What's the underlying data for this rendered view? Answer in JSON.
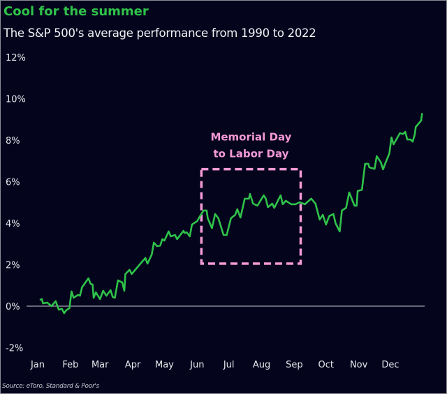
{
  "chart_data": {
    "type": "line",
    "title": "Cool for the summer",
    "subtitle": "The S&P 500's average performance from 1990 to 2022",
    "source": "Source: eToro, Standard & Poor's",
    "xlabel": "",
    "ylabel": "",
    "x_unit": "day of year",
    "ylim": [
      -2,
      12
    ],
    "y_ticks": [
      12,
      10,
      8,
      6,
      4,
      2,
      0,
      -2
    ],
    "y_tick_labels": [
      "12%",
      "10%",
      "8%",
      "6%",
      "4%",
      "2%",
      "0%",
      "-2%"
    ],
    "x_tick_labels": [
      "Jan",
      "Feb",
      "Mar",
      "Apr",
      "May",
      "Jun",
      "Jul",
      "Aug",
      "Sep",
      "Oct",
      "Nov",
      "Dec"
    ],
    "x_tick_days": [
      1,
      32,
      60,
      91,
      121,
      152,
      182,
      213,
      244,
      274,
      305,
      335
    ],
    "grid": false,
    "zero_line": true,
    "colors": {
      "line": "#2fc24a",
      "title": "#2fc24a",
      "annotation": "#f49ad6",
      "background": "#04041c",
      "zero_line": "#c8c8d2"
    },
    "series": [
      {
        "points": [
          [
            3,
            0.3
          ],
          [
            5,
            0.34
          ],
          [
            6,
            0.13
          ],
          [
            10,
            0.17
          ],
          [
            14,
            0.0
          ],
          [
            18,
            0.24
          ],
          [
            21,
            -0.17
          ],
          [
            24,
            -0.13
          ],
          [
            26,
            -0.34
          ],
          [
            28,
            -0.2
          ],
          [
            31,
            -0.1
          ],
          [
            33,
            0.71
          ],
          [
            35,
            0.4
          ],
          [
            39,
            0.54
          ],
          [
            41,
            0.5
          ],
          [
            43,
            0.91
          ],
          [
            49,
            1.34
          ],
          [
            51,
            1.08
          ],
          [
            53,
            1.04
          ],
          [
            54,
            0.4
          ],
          [
            56,
            0.67
          ],
          [
            60,
            0.34
          ],
          [
            63,
            0.74
          ],
          [
            66,
            0.5
          ],
          [
            70,
            0.77
          ],
          [
            72,
            0.44
          ],
          [
            74,
            0.4
          ],
          [
            77,
            1.24
          ],
          [
            81,
            1.14
          ],
          [
            83,
            0.74
          ],
          [
            84,
            1.55
          ],
          [
            88,
            1.75
          ],
          [
            90,
            1.55
          ],
          [
            100,
            2.15
          ],
          [
            103,
            2.32
          ],
          [
            105,
            2.05
          ],
          [
            109,
            2.49
          ],
          [
            111,
            3.06
          ],
          [
            114,
            2.89
          ],
          [
            117,
            2.92
          ],
          [
            119,
            3.23
          ],
          [
            121,
            3.16
          ],
          [
            125,
            3.6
          ],
          [
            127,
            3.36
          ],
          [
            131,
            3.43
          ],
          [
            133,
            3.23
          ],
          [
            139,
            3.63
          ],
          [
            140,
            3.53
          ],
          [
            142,
            3.56
          ],
          [
            144,
            3.43
          ],
          [
            145,
            3.36
          ],
          [
            147,
            3.93
          ],
          [
            152,
            4.1
          ],
          [
            155,
            4.36
          ],
          [
            158,
            4.61
          ],
          [
            161,
            4.61
          ],
          [
            162,
            4.24
          ],
          [
            166,
            3.76
          ],
          [
            169,
            4.44
          ],
          [
            172,
            4.24
          ],
          [
            177,
            3.43
          ],
          [
            180,
            3.43
          ],
          [
            184,
            4.24
          ],
          [
            188,
            4.4
          ],
          [
            190,
            4.67
          ],
          [
            193,
            4.27
          ],
          [
            197,
            5.18
          ],
          [
            201,
            5.18
          ],
          [
            202,
            5.41
          ],
          [
            205,
            4.94
          ],
          [
            209,
            4.84
          ],
          [
            215,
            5.34
          ],
          [
            217,
            5.18
          ],
          [
            219,
            4.77
          ],
          [
            223,
            4.94
          ],
          [
            225,
            4.74
          ],
          [
            231,
            5.34
          ],
          [
            233,
            4.91
          ],
          [
            236,
            5.08
          ],
          [
            241,
            4.91
          ],
          [
            245,
            4.91
          ],
          [
            249,
            5.01
          ],
          [
            254,
            4.91
          ],
          [
            260,
            5.18
          ],
          [
            264,
            4.94
          ],
          [
            268,
            4.17
          ],
          [
            271,
            4.4
          ],
          [
            274,
            3.93
          ],
          [
            277,
            4.34
          ],
          [
            281,
            4.44
          ],
          [
            283,
            4.0
          ],
          [
            287,
            3.6
          ],
          [
            289,
            4.61
          ],
          [
            293,
            4.74
          ],
          [
            296,
            5.48
          ],
          [
            301,
            4.84
          ],
          [
            303,
            4.84
          ],
          [
            304,
            5.55
          ],
          [
            308,
            5.61
          ],
          [
            311,
            6.86
          ],
          [
            314,
            6.86
          ],
          [
            315,
            6.69
          ],
          [
            320,
            6.62
          ],
          [
            322,
            7.23
          ],
          [
            326,
            6.92
          ],
          [
            328,
            6.59
          ],
          [
            330,
            6.86
          ],
          [
            334,
            7.36
          ],
          [
            336,
            8.13
          ],
          [
            338,
            7.8
          ],
          [
            344,
            8.34
          ],
          [
            347,
            8.3
          ],
          [
            349,
            8.4
          ],
          [
            351,
            8.03
          ],
          [
            354,
            8.03
          ],
          [
            356,
            7.93
          ],
          [
            358,
            8.27
          ],
          [
            359,
            8.64
          ],
          [
            364,
            8.94
          ],
          [
            365,
            9.3
          ]
        ]
      }
    ],
    "annotation": {
      "lines": [
        "Memorial Day",
        "to Labor Day"
      ],
      "box": {
        "x_start_day": 156,
        "x_end_day": 250,
        "y_bottom": 2.05,
        "y_top": 6.6
      },
      "style": "dashed"
    }
  }
}
